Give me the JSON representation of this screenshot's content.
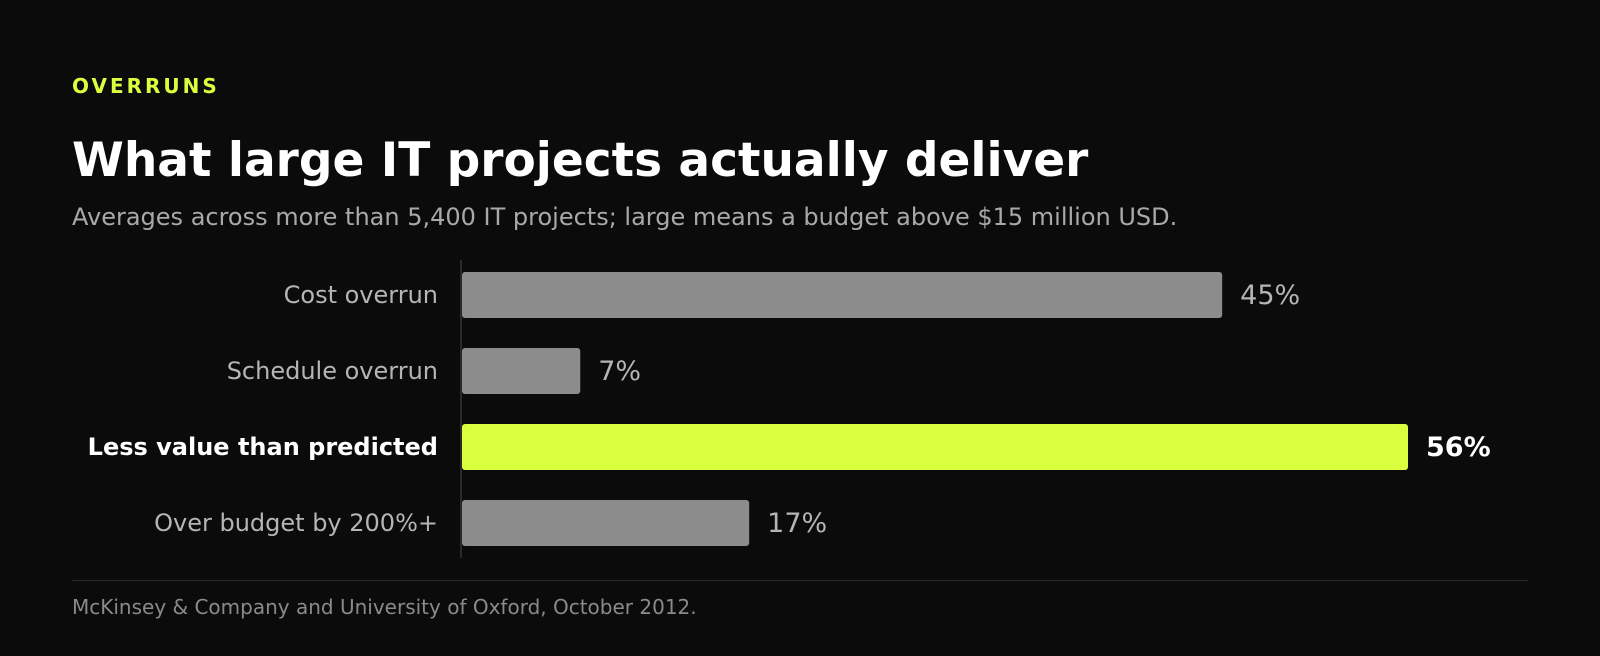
{
  "header": {
    "kicker": "OVERRUNS",
    "title": "What large IT projects actually deliver",
    "subtitle": "Averages across more than 5,400 IT projects; large means a budget above $15 million USD."
  },
  "footer": {
    "source": "McKinsey & Company and University of Oxford, October 2012."
  },
  "colors": {
    "background": "#0b0b0b",
    "accent": "#d9ff3f",
    "bar_default": "#8c8c8c",
    "label_default": "#b5b5b5",
    "label_highlight": "#ffffff",
    "baseline": "#2a2a2a"
  },
  "chart_data": {
    "type": "bar",
    "orientation": "horizontal",
    "categories": [
      "Cost overrun",
      "Schedule overrun",
      "Less value than predicted",
      "Over budget by 200%+"
    ],
    "values": [
      45,
      7,
      56,
      17
    ],
    "value_labels": [
      "45%",
      "7%",
      "56%",
      "17%"
    ],
    "highlight_index": 2,
    "unit": "%",
    "xlim": [
      0,
      56
    ],
    "grid": false,
    "legend": "none"
  }
}
